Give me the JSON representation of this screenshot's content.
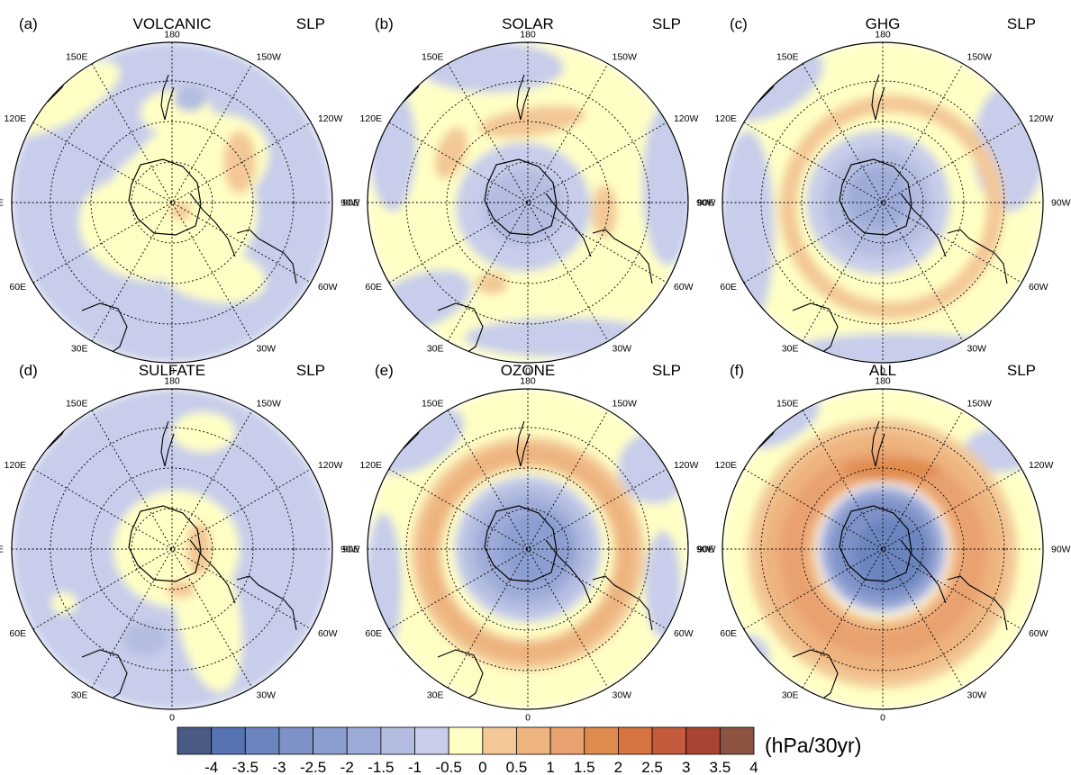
{
  "figure": {
    "panels": [
      {
        "letter": "(a)",
        "forcing": "VOLCANIC",
        "field": "SLP",
        "pattern": "weak positive anomalies over and near Antarctica, weak negative elsewhere"
      },
      {
        "letter": "(b)",
        "forcing": "SOLAR",
        "field": "SLP",
        "pattern": "weak negative over Antarctica, weak positive ring in mid-latitudes"
      },
      {
        "letter": "(c)",
        "forcing": "GHG",
        "field": "SLP",
        "pattern": "negative over Antarctica, positive ring in mid-latitudes"
      },
      {
        "letter": "(d)",
        "forcing": "SULFATE",
        "field": "SLP",
        "pattern": "weak positive near Antarctica, weak negative at high latitudes"
      },
      {
        "letter": "(e)",
        "forcing": "OZONE",
        "field": "SLP",
        "pattern": "strong negative over Antarctica, positive ring in mid-latitudes"
      },
      {
        "letter": "(f)",
        "forcing": "ALL",
        "field": "SLP",
        "pattern": "strongest negative over Antarctica, strongest positive ring in mid-latitudes"
      }
    ],
    "longitude_labels": [
      "180",
      "150W",
      "120W",
      "90W",
      "60W",
      "30W",
      "0",
      "30E",
      "60E",
      "90E",
      "120E",
      "150E"
    ],
    "colorbar": {
      "tick_labels": [
        "-4",
        "-3.5",
        "-3",
        "-2.5",
        "-2",
        "-1.5",
        "-1",
        "-0.5",
        "0",
        "0.5",
        "1",
        "1.5",
        "2",
        "2.5",
        "3",
        "3.5",
        "4"
      ],
      "unit_label": "(hPa/30yr)",
      "colors": [
        "#4c5a86",
        "#5674b1",
        "#6b84bd",
        "#7e92c7",
        "#8c9ed0",
        "#9eabd8",
        "#b2bde0",
        "#c7cdea",
        "#ffffc5",
        "#f3c896",
        "#eeb47f",
        "#e9a170",
        "#e08b4e",
        "#d6733e",
        "#c55a3d",
        "#a84532",
        "#8c5440"
      ]
    }
  }
}
